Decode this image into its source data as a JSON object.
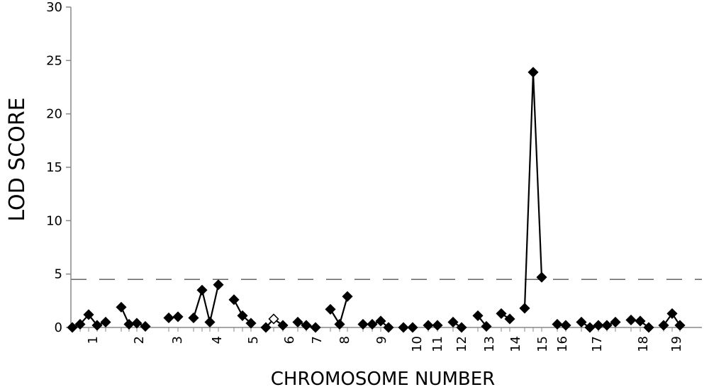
{
  "chart_data": {
    "type": "line",
    "xlabel": "CHROMOSOME NUMBER",
    "ylabel": "LOD SCORE",
    "ylim": [
      0,
      30
    ],
    "yticks": [
      0,
      5,
      10,
      15,
      20,
      25,
      30
    ],
    "threshold": 4.5,
    "chromosomes": [
      {
        "label": "1",
        "values": [
          0.0,
          0.3,
          1.2,
          0.2,
          0.5
        ]
      },
      {
        "label": "2",
        "values": [
          1.9,
          0.3,
          0.4,
          0.1
        ]
      },
      {
        "label": "3",
        "values": [
          0.9,
          1.0
        ]
      },
      {
        "label": "4",
        "values": [
          0.9,
          3.5,
          0.5,
          4.0
        ]
      },
      {
        "label": "5",
        "values": [
          2.6,
          1.1,
          0.4
        ]
      },
      {
        "label": "6",
        "values": [
          0.0,
          0.8,
          0.2
        ]
      },
      {
        "label": "7",
        "values": [
          0.5,
          0.2,
          0.0
        ]
      },
      {
        "label": "8",
        "values": [
          1.7,
          0.3,
          2.9
        ]
      },
      {
        "label": "9",
        "values": [
          0.3,
          0.3,
          0.6,
          0.0
        ]
      },
      {
        "label": "10",
        "values": [
          0.0,
          0.0
        ]
      },
      {
        "label": "11",
        "values": [
          0.2,
          0.2
        ]
      },
      {
        "label": "12",
        "values": [
          0.5,
          0.0
        ]
      },
      {
        "label": "13",
        "values": [
          1.1,
          0.1
        ]
      },
      {
        "label": "14",
        "values": [
          1.3,
          0.8
        ]
      },
      {
        "label": "15",
        "values": [
          1.8,
          23.9,
          4.7
        ]
      },
      {
        "label": "16",
        "values": [
          0.3,
          0.2
        ]
      },
      {
        "label": "17",
        "values": [
          0.5,
          0.0,
          0.2,
          0.2,
          0.5
        ]
      },
      {
        "label": "18",
        "values": [
          0.7,
          0.6,
          0.0
        ]
      },
      {
        "label": "19",
        "values": [
          0.2,
          1.3,
          0.2
        ]
      }
    ],
    "hollow_marker": {
      "chromosome": "6",
      "index": 1
    }
  }
}
